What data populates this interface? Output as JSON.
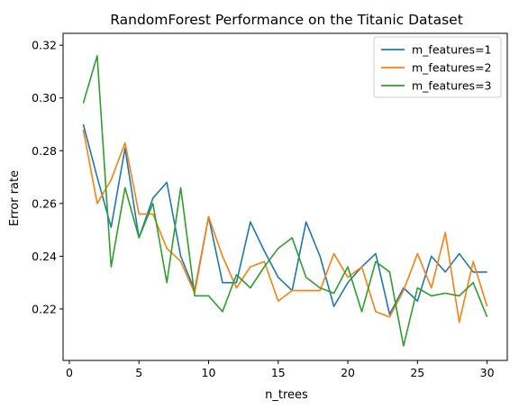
{
  "chart_data": {
    "type": "line",
    "title": "RandomForest Performance on the Titanic Dataset",
    "xlabel": "n_trees",
    "ylabel": "Error rate",
    "xlim": [
      -0.45,
      31.45
    ],
    "ylim": [
      0.2005,
      0.3245
    ],
    "xticks": [
      0,
      5,
      10,
      15,
      20,
      25,
      30
    ],
    "yticks": [
      0.22,
      0.24,
      0.26,
      0.28,
      0.3,
      0.32
    ],
    "ytick_labels": [
      "0.22",
      "0.24",
      "0.26",
      "0.28",
      "0.30",
      "0.32"
    ],
    "grid": false,
    "legend_position": "top-right",
    "x": [
      1,
      2,
      3,
      4,
      5,
      6,
      7,
      8,
      9,
      10,
      11,
      12,
      13,
      14,
      15,
      16,
      17,
      18,
      19,
      20,
      21,
      22,
      23,
      24,
      25,
      26,
      27,
      28,
      29,
      30
    ],
    "series": [
      {
        "name": "m_features=1",
        "color": "#1f77b4",
        "values": [
          0.29,
          0.27,
          0.251,
          0.281,
          0.247,
          0.262,
          0.268,
          0.24,
          0.227,
          0.255,
          0.23,
          0.23,
          0.253,
          0.242,
          0.232,
          0.227,
          0.253,
          0.24,
          0.221,
          0.23,
          0.236,
          0.241,
          0.218,
          0.228,
          0.223,
          0.24,
          0.234,
          0.241,
          0.234,
          0.234
        ]
      },
      {
        "name": "m_features=2",
        "color": "#ff7f0e",
        "values": [
          0.288,
          0.26,
          0.269,
          0.283,
          0.256,
          0.256,
          0.243,
          0.238,
          0.226,
          0.255,
          0.24,
          0.228,
          0.236,
          0.238,
          0.223,
          0.227,
          0.227,
          0.227,
          0.241,
          0.232,
          0.236,
          0.219,
          0.217,
          0.227,
          0.241,
          0.228,
          0.249,
          0.215,
          0.238,
          0.221
        ]
      },
      {
        "name": "m_features=3",
        "color": "#2ca02c",
        "values": [
          0.298,
          0.316,
          0.236,
          0.266,
          0.247,
          0.26,
          0.23,
          0.266,
          0.225,
          0.225,
          0.219,
          0.233,
          0.228,
          0.236,
          0.243,
          0.247,
          0.232,
          0.228,
          0.226,
          0.236,
          0.219,
          0.238,
          0.234,
          0.206,
          0.228,
          0.225,
          0.226,
          0.225,
          0.23,
          0.217
        ]
      }
    ]
  }
}
